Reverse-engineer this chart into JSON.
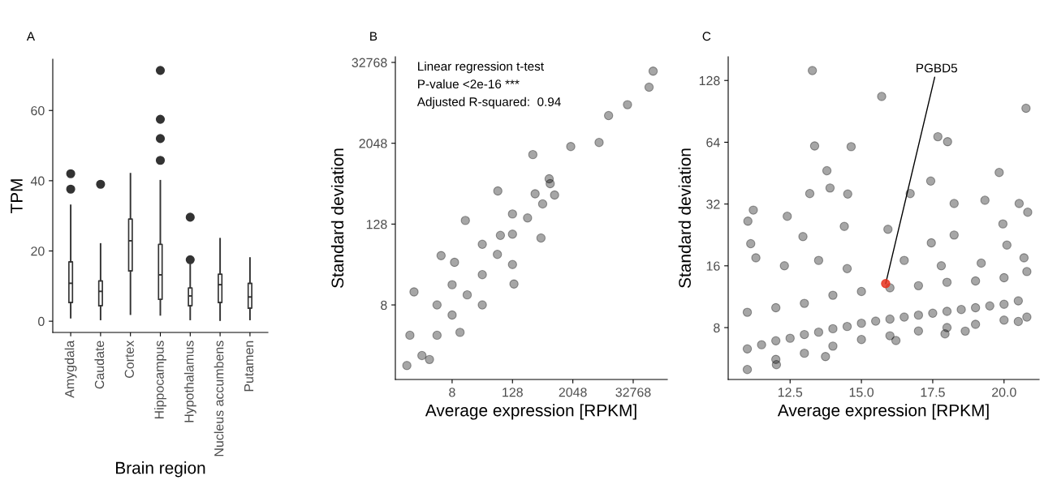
{
  "chart_data": [
    {
      "type": "box",
      "title": "A",
      "xlabel": "Brain region",
      "ylabel": "TPM",
      "categories": [
        "Amygdala",
        "Caudate",
        "Cortex",
        "Hippocampus",
        "Hypothalamus",
        "Nucleus accumbens",
        "Putamen"
      ],
      "color": "#333333",
      "boxes": [
        {
          "low": 1,
          "q1": 5.3,
          "median": 10.8,
          "q3": 16.9,
          "high": 33,
          "outliers": [
            37.6,
            42
          ]
        },
        {
          "low": 0.5,
          "q1": 4.4,
          "median": 8.5,
          "q3": 11.5,
          "high": 22,
          "outliers": [
            39
          ]
        },
        {
          "low": 2,
          "q1": 14.3,
          "median": 22.9,
          "q3": 29.1,
          "high": 42
        },
        {
          "low": 1.8,
          "q1": 6.2,
          "median": 13.2,
          "q3": 21.9,
          "high": 40,
          "outliers": [
            45.8,
            52,
            57.5,
            71.4
          ]
        },
        {
          "low": 0.5,
          "q1": 4.4,
          "median": 7.2,
          "q3": 9.5,
          "high": 16,
          "outliers": [
            17.5,
            29.6
          ]
        },
        {
          "low": 0.3,
          "q1": 5.3,
          "median": 10.4,
          "q3": 13.4,
          "high": 23.5
        },
        {
          "low": 0.5,
          "q1": 3.7,
          "median": 6.9,
          "q3": 10.8,
          "high": 18
        }
      ],
      "ylim": [
        -3.2,
        74.6
      ],
      "yticks": [
        0,
        20,
        40,
        60
      ],
      "grid": false,
      "legend": false
    },
    {
      "type": "scatter",
      "title": "B",
      "xlabel": "Average expression [RPKM]",
      "ylabel": "Standard deviation",
      "log": "xy",
      "marker": "circle",
      "grid": false,
      "legend": false,
      "xlim": [
        0.59,
        157000
      ],
      "ylim": [
        0.62,
        39800
      ],
      "xticks": [
        8,
        128,
        2048,
        32768
      ],
      "yticks": [
        8,
        128,
        2048,
        32768
      ],
      "annotations": [
        "Linear regression t-test",
        "P-value <2e-16 ***",
        "Adjusted R-squared:  0.94"
      ],
      "series": [
        {
          "color": "#000000",
          "x": [
            1,
            2,
            4,
            8,
            16,
            32,
            64,
            128,
            256,
            1.39,
            8.94,
            73.5,
            690,
            11.5,
            137,
            474,
            885,
            14.7,
            326,
            6840,
            10580,
            25200,
            67900,
            81800,
            1860,
            65.3,
            4.82,
            1.15,
            2.83,
            4,
            8,
            32,
            32,
            128,
            128,
            362,
            512,
            724
          ],
          "values": [
            1,
            1.41,
            2.83,
            5.66,
            11.3,
            22.6,
            45.3,
            90.5,
            158,
            12.5,
            34.5,
            86.8,
            605,
            3.12,
            16.4,
            79.3,
            347,
            145,
            1389,
            2105,
            5290,
            7690,
            14000,
            24300,
            1830,
            399,
            43.4,
            2.83,
            1.23,
            8,
            16,
            8,
            64,
            32,
            181,
            362,
            256,
            512
          ]
        }
      ]
    },
    {
      "type": "scatter",
      "title": "C",
      "xlabel": "Average expression [RPKM]",
      "ylabel": "Standard deviation",
      "log": "y",
      "marker": "circle",
      "grid": false,
      "legend": false,
      "xlim": [
        10.33,
        21.23
      ],
      "ylim": [
        4.47,
        167
      ],
      "xticks": [
        {
          "value": 12.5,
          "label": "12.5"
        },
        {
          "value": 15,
          "label": "15.0"
        },
        {
          "value": 17.5,
          "label": "17.5"
        },
        {
          "value": 20,
          "label": "20.0"
        }
      ],
      "yticks": [
        8,
        16,
        32,
        64,
        128
      ],
      "annotations": [
        {
          "text": "PGBD5",
          "x": 15.85,
          "y": 13.1
        }
      ],
      "series": [
        {
          "color": "#000000",
          "x": [
            13.28,
            15.71,
            20.77,
            17.68,
            18.02,
            13.36,
            14.64,
            19.83,
            13.79,
            17.43,
            13.9,
            13.19,
            14.52,
            16.71,
            19.33,
            20.53,
            18.25,
            11.21,
            12.4,
            11.02,
            20.83,
            19.96,
            14.4,
            15.93,
            18.25,
            12.95,
            11.12,
            17.45,
            20.1,
            12.02,
            13.74,
            16.21,
            17.93,
            18.64,
            20.5,
            11,
            11.5,
            12,
            12.5,
            13,
            13.5,
            14,
            14.5,
            15,
            15.5,
            16,
            16.5,
            17,
            17.5,
            18,
            18.5,
            19,
            19.5,
            20,
            20.5,
            11,
            12,
            13,
            14,
            15,
            16,
            17,
            18,
            19,
            20,
            20.8,
            11.3,
            12.3,
            13.5,
            14.5,
            16.5,
            17.8,
            19.2,
            20.7,
            11,
            12,
            13,
            14,
            15,
            16,
            17,
            18,
            19,
            20,
            20.8
          ],
          "values": [
            143,
            107,
            93.7,
            68.1,
            64.4,
            61.4,
            60.9,
            45.6,
            46.5,
            41.4,
            38.3,
            36,
            35.8,
            36,
            33.4,
            32.2,
            32.2,
            29.9,
            27.9,
            26.4,
            29.2,
            25.6,
            24.9,
            24.1,
            22.6,
            22.2,
            20.5,
            20.7,
            20.2,
            5.28,
            5.78,
            6.92,
            7.46,
            7.69,
            8.57,
            6.3,
            6.6,
            6.9,
            7.1,
            7.4,
            7.6,
            7.9,
            8.1,
            8.4,
            8.6,
            8.8,
            9,
            9.2,
            9.4,
            9.6,
            9.8,
            10,
            10.2,
            10.4,
            10.8,
            9.5,
            10,
            10.5,
            11.5,
            12,
            12.5,
            12.8,
            13.3,
            13.5,
            14,
            15,
            17.5,
            16,
            17,
            15.5,
            17,
            16,
            16.5,
            17.5,
            5,
            5.6,
            6,
            6.5,
            7,
            7.3,
            7.7,
            8,
            8.3,
            8.7,
            9
          ]
        },
        {
          "color": "#e8321e",
          "x": [
            15.85
          ],
          "values": [
            13.1
          ]
        }
      ]
    }
  ]
}
